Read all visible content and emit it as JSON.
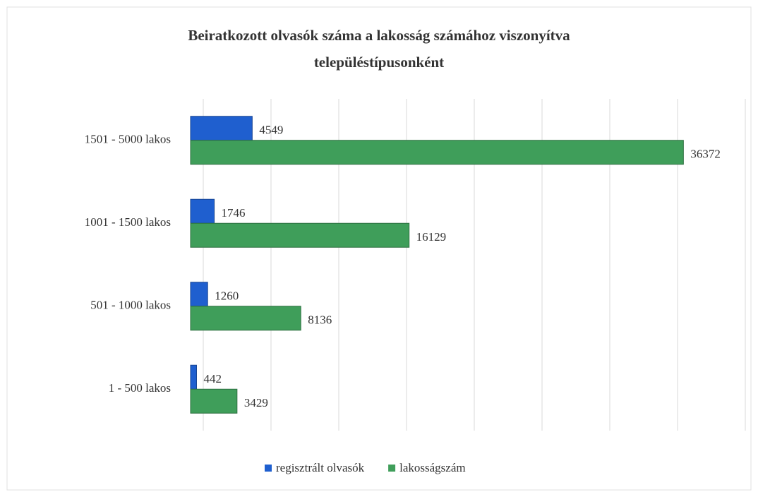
{
  "chart_data": {
    "type": "hbar",
    "title": [
      "Beiratkozott olvasók száma a lakosság számához viszonyítva",
      "településtípusonként"
    ],
    "categories": [
      "1501 - 5000 lakos",
      "1001 - 1500 lakos",
      "501 - 1000 lakos",
      "1 - 500 lakos"
    ],
    "series": [
      {
        "name": "regisztrált olvasók",
        "color": "#1f5fcf",
        "values": [
          4549,
          1746,
          1260,
          442
        ]
      },
      {
        "name": "lakosságszám",
        "color": "#3f9e5a",
        "values": [
          36372,
          16129,
          8136,
          3429
        ]
      }
    ],
    "xlim": [
      0,
      40000
    ],
    "xticks": [
      0,
      5000,
      10000,
      15000,
      20000,
      25000,
      30000,
      35000,
      40000
    ],
    "grid": true,
    "legend": "bottom"
  }
}
